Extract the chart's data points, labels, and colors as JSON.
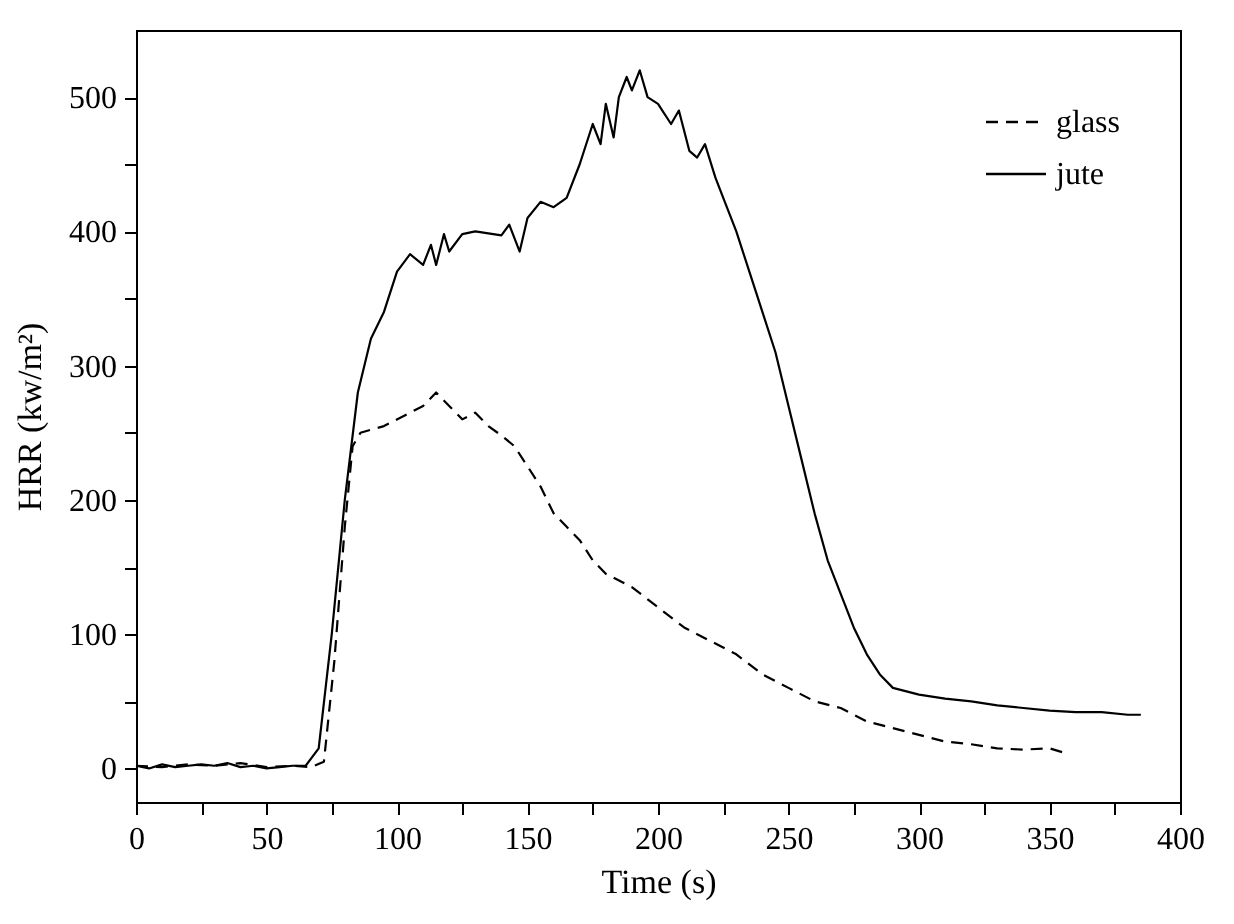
{
  "chart_data": {
    "type": "line",
    "xlabel": "Time (s)",
    "ylabel": "HRR (kw/m²)",
    "xlim": [
      0,
      400
    ],
    "ylim": [
      -25,
      550
    ],
    "xticks": [
      0,
      {
        "value": 25,
        "label": null
      },
      50,
      {
        "value": 75,
        "label": null
      },
      100,
      {
        "value": 125,
        "label": null
      },
      150,
      {
        "value": 175,
        "label": null
      },
      200,
      {
        "value": 225,
        "label": null
      },
      250,
      {
        "value": 275,
        "label": null
      },
      300,
      {
        "value": 325,
        "label": null
      },
      350,
      {
        "value": 375,
        "label": null
      },
      400
    ],
    "yticks": [
      0,
      {
        "value": 50,
        "label": null
      },
      100,
      {
        "value": 150,
        "label": null
      },
      200,
      {
        "value": 250,
        "label": null
      },
      300,
      {
        "value": 350,
        "label": null
      },
      400,
      {
        "value": 450,
        "label": null
      },
      500
    ],
    "grid": false,
    "legend": "top right",
    "marker": "none",
    "series": [
      {
        "name": "glass",
        "color": "#000000",
        "line_style": "dashed",
        "x": [
          0,
          10,
          20,
          30,
          40,
          50,
          60,
          67,
          72,
          76,
          80,
          83,
          86,
          95,
          105,
          110,
          115,
          120,
          125,
          130,
          135,
          140,
          145,
          150,
          155,
          160,
          165,
          170,
          175,
          180,
          190,
          200,
          210,
          220,
          230,
          240,
          250,
          260,
          270,
          280,
          290,
          300,
          310,
          320,
          330,
          340,
          350,
          355
        ],
        "values": [
          2,
          1,
          3,
          2,
          4,
          1,
          2,
          1,
          5,
          80,
          180,
          240,
          250,
          255,
          265,
          270,
          280,
          270,
          260,
          265,
          255,
          248,
          240,
          225,
          210,
          190,
          180,
          170,
          155,
          145,
          135,
          120,
          105,
          95,
          85,
          70,
          60,
          50,
          45,
          35,
          30,
          25,
          20,
          18,
          15,
          14,
          15,
          12
        ]
      },
      {
        "name": "jute",
        "color": "#000000",
        "line_style": "solid",
        "x": [
          0,
          5,
          10,
          15,
          20,
          25,
          30,
          35,
          40,
          45,
          50,
          55,
          60,
          65,
          70,
          75,
          80,
          85,
          90,
          95,
          100,
          105,
          110,
          113,
          115,
          118,
          120,
          125,
          130,
          140,
          143,
          147,
          150,
          155,
          160,
          165,
          170,
          175,
          178,
          180,
          183,
          185,
          188,
          190,
          193,
          196,
          200,
          205,
          208,
          212,
          215,
          218,
          222,
          225,
          230,
          235,
          240,
          245,
          250,
          255,
          260,
          265,
          270,
          275,
          280,
          285,
          290,
          300,
          310,
          320,
          330,
          340,
          350,
          360,
          370,
          380,
          385
        ],
        "values": [
          2,
          0,
          3,
          1,
          2,
          3,
          2,
          4,
          1,
          2,
          0,
          1,
          2,
          2,
          15,
          100,
          200,
          280,
          320,
          340,
          370,
          383,
          375,
          390,
          375,
          398,
          385,
          398,
          400,
          397,
          405,
          385,
          410,
          422,
          418,
          425,
          450,
          480,
          465,
          495,
          470,
          500,
          515,
          505,
          520,
          500,
          495,
          480,
          490,
          460,
          455,
          465,
          440,
          425,
          400,
          370,
          340,
          310,
          270,
          230,
          190,
          155,
          130,
          105,
          85,
          70,
          60,
          55,
          52,
          50,
          47,
          45,
          43,
          42,
          42,
          40,
          40
        ]
      }
    ]
  }
}
